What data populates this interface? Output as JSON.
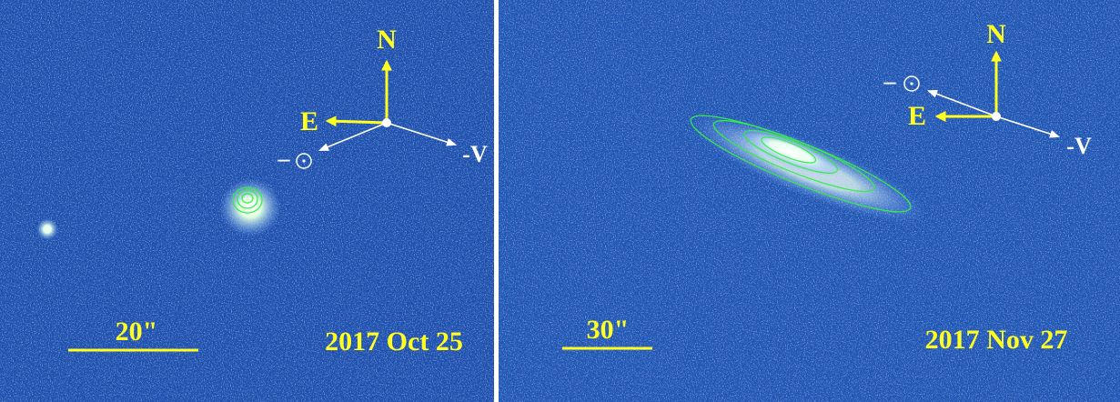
{
  "panels": [
    {
      "north": "N",
      "east": "E",
      "velocity": "-V",
      "sun_prefix": "–",
      "scale": "20\"",
      "date": "2017 Oct 25"
    },
    {
      "north": "N",
      "east": "E",
      "velocity": "-V",
      "sun_prefix": "–",
      "scale": "30\"",
      "date": "2017 Nov 27"
    }
  ]
}
